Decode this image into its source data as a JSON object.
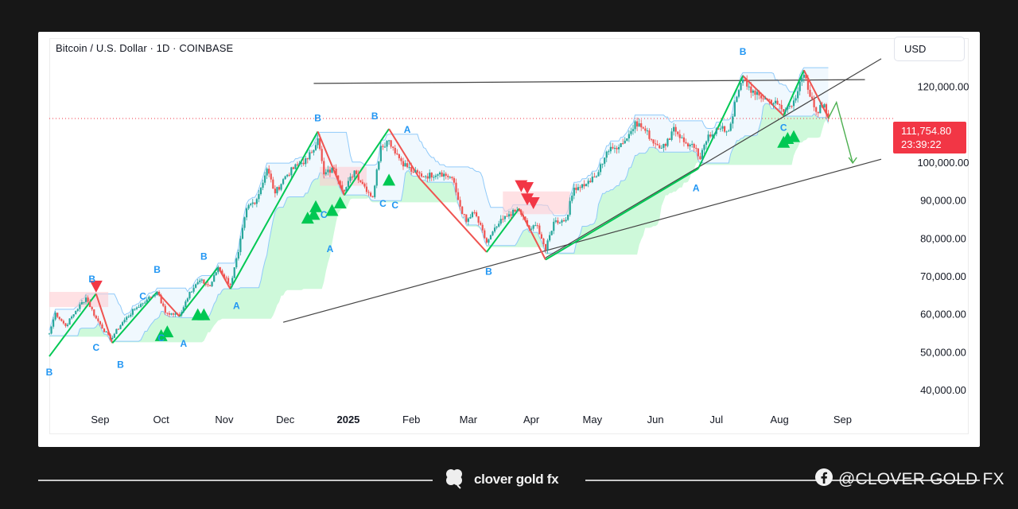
{
  "chart_header": {
    "symbol_title": "Bitcoin / U.S. Dollar · 1D · COINBASE",
    "currency_button": "USD"
  },
  "price_tag": {
    "last_price": "111,754.80",
    "countdown": "23:39:22"
  },
  "footer": {
    "brand_name": "clover gold fx",
    "social_handle": "@CLOVER GOLD FX"
  },
  "colors": {
    "bull": "#26a69a",
    "bear": "#ef5350",
    "signal_green": "#00c853",
    "signal_red": "#f23645",
    "label_blue": "#2196f3",
    "cloud_green": "#b9f6ca",
    "cloud_red": "#ffcdd2",
    "price_tag_bg": "#f23645"
  },
  "icons": [
    "clover-icon",
    "facebook-icon",
    "buy-signal-triangle-icon",
    "sell-signal-triangle-icon"
  ],
  "chart_data": {
    "type": "candlestick",
    "title": "Bitcoin / U.S. Dollar · 1D · COINBASE",
    "y_axis": {
      "ticks": [
        40000,
        50000,
        60000,
        70000,
        80000,
        90000,
        100000,
        120000
      ],
      "tick_labels": [
        "40,000.00",
        "50,000.00",
        "60,000.00",
        "70,000.00",
        "80,000.00",
        "90,000.00",
        "100,000.00",
        "120,000.00"
      ],
      "range": [
        36000,
        130000
      ],
      "position": "right"
    },
    "x_axis": {
      "ticks": [
        "2024-09-01",
        "2024-10-01",
        "2024-11-01",
        "2024-12-01",
        "2025-01-01",
        "2025-02-01",
        "2025-03-01",
        "2025-04-01",
        "2025-05-01",
        "2025-06-01",
        "2025-07-01",
        "2025-08-01",
        "2025-09-01"
      ],
      "tick_labels": [
        "Sep",
        "Oct",
        "Nov",
        "Dec",
        "2025",
        "Feb",
        "Mar",
        "Apr",
        "May",
        "Jun",
        "Jul",
        "Aug",
        "Sep"
      ],
      "range": [
        "2024-08-07",
        "2025-09-20"
      ]
    },
    "last_price": 111754.8,
    "series_close": [
      [
        "2024-08-07",
        55000
      ],
      [
        "2024-08-10",
        60500
      ],
      [
        "2024-08-15",
        57000
      ],
      [
        "2024-08-20",
        61000
      ],
      [
        "2024-08-25",
        64500
      ],
      [
        "2024-08-30",
        59000
      ],
      [
        "2024-09-06",
        53500
      ],
      [
        "2024-09-12",
        58000
      ],
      [
        "2024-09-18",
        61500
      ],
      [
        "2024-09-24",
        64000
      ],
      [
        "2024-09-29",
        66000
      ],
      [
        "2024-10-03",
        60500
      ],
      [
        "2024-10-10",
        59800
      ],
      [
        "2024-10-15",
        66000
      ],
      [
        "2024-10-20",
        69000
      ],
      [
        "2024-10-25",
        67500
      ],
      [
        "2024-10-29",
        72500
      ],
      [
        "2024-11-04",
        67800
      ],
      [
        "2024-11-08",
        76500
      ],
      [
        "2024-11-12",
        88000
      ],
      [
        "2024-11-17",
        90500
      ],
      [
        "2024-11-22",
        98500
      ],
      [
        "2024-11-26",
        92000
      ],
      [
        "2024-12-01",
        96500
      ],
      [
        "2024-12-07",
        99500
      ],
      [
        "2024-12-12",
        101000
      ],
      [
        "2024-12-17",
        106500
      ],
      [
        "2024-12-20",
        97000
      ],
      [
        "2024-12-25",
        98500
      ],
      [
        "2024-12-30",
        92500
      ],
      [
        "2025-01-04",
        98000
      ],
      [
        "2025-01-08",
        94500
      ],
      [
        "2025-01-13",
        91000
      ],
      [
        "2025-01-17",
        104500
      ],
      [
        "2025-01-21",
        106000
      ],
      [
        "2025-01-27",
        100500
      ],
      [
        "2025-02-02",
        97500
      ],
      [
        "2025-02-08",
        96500
      ],
      [
        "2025-02-15",
        97500
      ],
      [
        "2025-02-21",
        96000
      ],
      [
        "2025-02-25",
        88500
      ],
      [
        "2025-02-28",
        84500
      ],
      [
        "2025-03-04",
        87000
      ],
      [
        "2025-03-10",
        79000
      ],
      [
        "2025-03-16",
        84000
      ],
      [
        "2025-03-21",
        86500
      ],
      [
        "2025-03-26",
        87500
      ],
      [
        "2025-03-31",
        82500
      ],
      [
        "2025-04-04",
        83500
      ],
      [
        "2025-04-08",
        77000
      ],
      [
        "2025-04-12",
        84500
      ],
      [
        "2025-04-18",
        85000
      ],
      [
        "2025-04-22",
        93500
      ],
      [
        "2025-04-28",
        94500
      ],
      [
        "2025-05-03",
        96500
      ],
      [
        "2025-05-08",
        103000
      ],
      [
        "2025-05-12",
        104000
      ],
      [
        "2025-05-18",
        106500
      ],
      [
        "2025-05-22",
        111000
      ],
      [
        "2025-05-27",
        108500
      ],
      [
        "2025-06-01",
        105000
      ],
      [
        "2025-06-06",
        104500
      ],
      [
        "2025-06-10",
        109500
      ],
      [
        "2025-06-15",
        105500
      ],
      [
        "2025-06-20",
        104000
      ],
      [
        "2025-06-23",
        101000
      ],
      [
        "2025-06-27",
        107500
      ],
      [
        "2025-07-02",
        109000
      ],
      [
        "2025-07-07",
        108500
      ],
      [
        "2025-07-11",
        117500
      ],
      [
        "2025-07-14",
        122000
      ],
      [
        "2025-07-20",
        118000
      ],
      [
        "2025-07-25",
        117000
      ],
      [
        "2025-07-31",
        115500
      ],
      [
        "2025-08-03",
        113500
      ],
      [
        "2025-08-08",
        116500
      ],
      [
        "2025-08-13",
        123300
      ],
      [
        "2025-08-16",
        117500
      ],
      [
        "2025-08-19",
        113500
      ],
      [
        "2025-08-23",
        115500
      ],
      [
        "2025-08-25",
        111754.8
      ]
    ],
    "trendlines": [
      {
        "name": "upper-resistance",
        "from": [
          "2024-12-15",
          121000
        ],
        "to": [
          "2025-09-12",
          122000
        ]
      },
      {
        "name": "lower-support",
        "from": [
          "2024-11-30",
          58000
        ],
        "to": [
          "2025-09-20",
          101000
        ]
      },
      {
        "name": "rising-support-steep",
        "from": [
          "2025-04-08",
          75000
        ],
        "to": [
          "2025-09-20",
          127500
        ]
      }
    ],
    "projection": [
      [
        "2025-08-25",
        111754.8
      ],
      [
        "2025-08-29",
        116000
      ],
      [
        "2025-09-06",
        100000
      ]
    ],
    "wave_labels": [
      {
        "text": "B",
        "x": "2024-08-07",
        "y": 44000
      },
      {
        "text": "B",
        "x": "2024-08-28",
        "y": 68500
      },
      {
        "text": "C",
        "x": "2024-08-30",
        "y": 50500
      },
      {
        "text": "B",
        "x": "2024-09-11",
        "y": 46000
      },
      {
        "text": "C",
        "x": "2024-09-22",
        "y": 64000
      },
      {
        "text": "B",
        "x": "2024-09-29",
        "y": 71000
      },
      {
        "text": "C",
        "x": "2024-10-01",
        "y": 53000
      },
      {
        "text": "A",
        "x": "2024-10-12",
        "y": 51500
      },
      {
        "text": "B",
        "x": "2024-10-22",
        "y": 74500
      },
      {
        "text": "A",
        "x": "2024-11-07",
        "y": 61500
      },
      {
        "text": "B",
        "x": "2024-12-17",
        "y": 111000
      },
      {
        "text": "C",
        "x": "2024-12-20",
        "y": 85500
      },
      {
        "text": "A",
        "x": "2024-12-23",
        "y": 76500
      },
      {
        "text": "B",
        "x": "2025-01-14",
        "y": 111500
      },
      {
        "text": "C",
        "x": "2025-01-18",
        "y": 88500
      },
      {
        "text": "C",
        "x": "2025-01-24",
        "y": 88000
      },
      {
        "text": "A",
        "x": "2025-01-30",
        "y": 108000
      },
      {
        "text": "B",
        "x": "2025-03-11",
        "y": 70500
      },
      {
        "text": "A",
        "x": "2025-06-21",
        "y": 92500
      },
      {
        "text": "B",
        "x": "2025-07-14",
        "y": 128500
      },
      {
        "text": "C",
        "x": "2025-08-03",
        "y": 108500
      }
    ],
    "buy_signals": [
      {
        "x": "2024-10-01",
        "y": 54500
      },
      {
        "x": "2024-10-04",
        "y": 55500
      },
      {
        "x": "2024-10-19",
        "y": 60000
      },
      {
        "x": "2024-10-22",
        "y": 60000
      },
      {
        "x": "2024-12-12",
        "y": 85500
      },
      {
        "x": "2024-12-16",
        "y": 88500
      },
      {
        "x": "2024-12-15",
        "y": 86500
      },
      {
        "x": "2024-12-24",
        "y": 87500
      },
      {
        "x": "2024-12-28",
        "y": 89500
      },
      {
        "x": "2025-01-21",
        "y": 95500
      },
      {
        "x": "2025-08-03",
        "y": 105500
      },
      {
        "x": "2025-08-05",
        "y": 106500
      },
      {
        "x": "2025-08-08",
        "y": 107000
      }
    ],
    "sell_signals": [
      {
        "x": "2024-08-30",
        "y": 67500
      },
      {
        "x": "2025-03-27",
        "y": 94000
      },
      {
        "x": "2025-03-30",
        "y": 93500
      },
      {
        "x": "2025-03-30",
        "y": 90500
      },
      {
        "x": "2025-04-02",
        "y": 89500
      }
    ],
    "legend": "none",
    "grid": false
  }
}
